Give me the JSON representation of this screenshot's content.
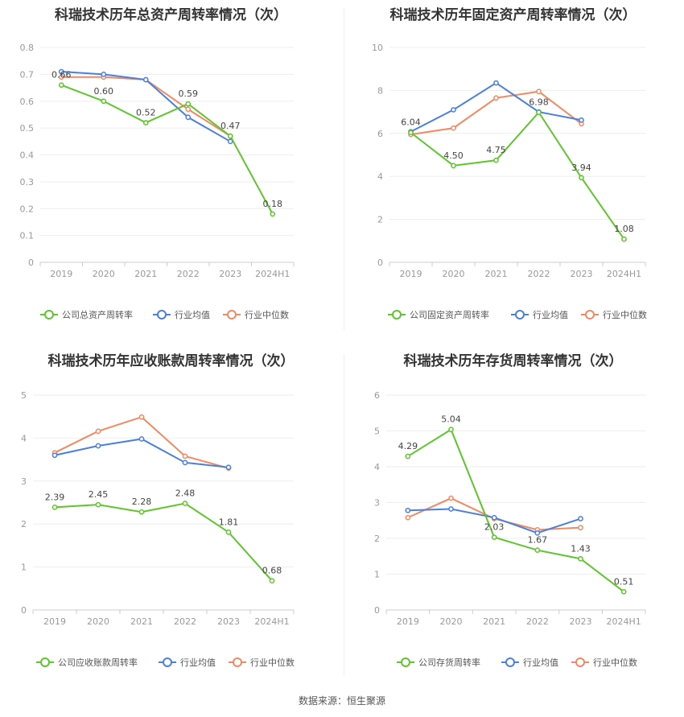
{
  "source": "数据来源：恒生聚源",
  "legend_common": {
    "avg": "行业均值",
    "median": "行业中位数"
  },
  "colors": {
    "company": "#5ec52d",
    "avg": "#4a7fdc",
    "median": "#f08a63"
  },
  "chart_data": [
    {
      "type": "line",
      "title": "科瑞技术历年总资产周转率情况（次）",
      "categories": [
        "2019",
        "2020",
        "2021",
        "2022",
        "2023",
        "2024H1"
      ],
      "ylim": [
        0,
        0.8
      ],
      "yticks": [
        "0",
        "0.1",
        "0.2",
        "0.3",
        "0.4",
        "0.5",
        "0.6",
        "0.7",
        "0.8"
      ],
      "series": [
        {
          "name": "公司总资产周转率",
          "values": [
            0.66,
            0.6,
            0.52,
            0.59,
            0.47,
            0.18
          ],
          "labels": [
            "0.66",
            "0.60",
            "0.52",
            "0.59",
            "0.47",
            "0.18"
          ]
        },
        {
          "name": "行业均值",
          "values": [
            0.71,
            0.7,
            0.68,
            0.54,
            0.45,
            null
          ]
        },
        {
          "name": "行业中位数",
          "values": [
            0.69,
            0.69,
            0.68,
            0.57,
            0.47,
            null
          ]
        }
      ]
    },
    {
      "type": "line",
      "title": "科瑞技术历年固定资产周转率情况（次）",
      "categories": [
        "2019",
        "2020",
        "2021",
        "2022",
        "2023",
        "2024H1"
      ],
      "ylim": [
        0,
        10
      ],
      "yticks": [
        "0",
        "2",
        "4",
        "6",
        "8",
        "10"
      ],
      "series": [
        {
          "name": "公司固定资产周转率",
          "values": [
            6.04,
            4.5,
            4.75,
            6.98,
            3.94,
            1.08
          ],
          "labels": [
            "6.04",
            "4.50",
            "4.75",
            "6.98",
            "3.94",
            "1.08"
          ]
        },
        {
          "name": "行业均值",
          "values": [
            6.08,
            7.1,
            8.35,
            7.0,
            6.62,
            null
          ]
        },
        {
          "name": "行业中位数",
          "values": [
            5.95,
            6.25,
            7.65,
            7.95,
            6.45,
            null
          ]
        }
      ]
    },
    {
      "type": "line",
      "title": "科瑞技术历年应收账款周转率情况（次）",
      "categories": [
        "2019",
        "2020",
        "2021",
        "2022",
        "2023",
        "2024H1"
      ],
      "ylim": [
        0,
        5
      ],
      "yticks": [
        "0",
        "1",
        "2",
        "3",
        "4",
        "5"
      ],
      "series": [
        {
          "name": "公司应收账款周转率",
          "values": [
            2.39,
            2.45,
            2.28,
            2.48,
            1.81,
            0.68
          ],
          "labels": [
            "2.39",
            "2.45",
            "2.28",
            "2.48",
            "1.81",
            "0.68"
          ]
        },
        {
          "name": "行业均值",
          "values": [
            3.6,
            3.82,
            3.98,
            3.43,
            3.32,
            null
          ]
        },
        {
          "name": "行业中位数",
          "values": [
            3.66,
            4.16,
            4.49,
            3.58,
            3.3,
            null
          ]
        }
      ]
    },
    {
      "type": "line",
      "title": "科瑞技术历年存货周转率情况（次）",
      "categories": [
        "2019",
        "2020",
        "2021",
        "2022",
        "2023",
        "2024H1"
      ],
      "ylim": [
        0,
        6
      ],
      "yticks": [
        "0",
        "1",
        "2",
        "3",
        "4",
        "5",
        "6"
      ],
      "series": [
        {
          "name": "公司存货周转率",
          "values": [
            4.29,
            5.04,
            2.03,
            1.67,
            1.43,
            0.51
          ],
          "labels": [
            "4.29",
            "5.04",
            "2.03",
            "1.67",
            "1.43",
            "0.51"
          ]
        },
        {
          "name": "行业均值",
          "values": [
            2.78,
            2.82,
            2.58,
            2.15,
            2.55,
            null
          ]
        },
        {
          "name": "行业中位数",
          "values": [
            2.58,
            3.12,
            2.55,
            2.24,
            2.3,
            null
          ]
        }
      ]
    }
  ]
}
